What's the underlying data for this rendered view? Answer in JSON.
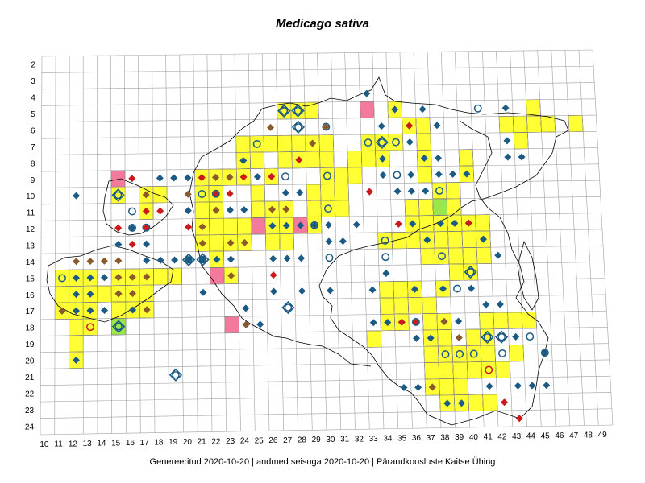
{
  "map": {
    "title": "Medicago sativa",
    "row_labels": [
      "2",
      "3",
      "4",
      "5",
      "6",
      "7",
      "8",
      "9",
      "10",
      "11",
      "12",
      "13",
      "14",
      "15",
      "16",
      "17",
      "18",
      "19",
      "20",
      "21",
      "22",
      "23",
      "24"
    ],
    "col_labels": [
      "10",
      "11",
      "12",
      "13",
      "14",
      "15",
      "16",
      "17",
      "18",
      "19",
      "20",
      "21",
      "22",
      "23",
      "24",
      "25",
      "26",
      "27",
      "28",
      "29",
      "30",
      "31",
      "32",
      "33",
      "34",
      "35",
      "36",
      "37",
      "38",
      "39",
      "40",
      "41",
      "42",
      "43",
      "44",
      "45",
      "46",
      "47",
      "48",
      "49"
    ],
    "colors": {
      "yellow_cell": "#ffff33",
      "pink_cell": "#f47a9d",
      "green_cell": "#99e64d",
      "grid": "#a0a0a0",
      "blue_marker": "#1a5a85",
      "red_marker": "#cc1a1a",
      "brown_marker": "#8a5a2b",
      "coast": "#000000"
    },
    "cells_yellow": [
      [
        27,
        5
      ],
      [
        28,
        5
      ],
      [
        29,
        5
      ],
      [
        35,
        5
      ],
      [
        45,
        5
      ],
      [
        36,
        6
      ],
      [
        37,
        6
      ],
      [
        43,
        6
      ],
      [
        44,
        6
      ],
      [
        45,
        6
      ],
      [
        46,
        6
      ],
      [
        48,
        6
      ],
      [
        24,
        7
      ],
      [
        25,
        7
      ],
      [
        26,
        7
      ],
      [
        27,
        7
      ],
      [
        28,
        7
      ],
      [
        29,
        7
      ],
      [
        30,
        7
      ],
      [
        33,
        7
      ],
      [
        34,
        7
      ],
      [
        35,
        7
      ],
      [
        37,
        7
      ],
      [
        44,
        7
      ],
      [
        24,
        8
      ],
      [
        25,
        8
      ],
      [
        27,
        8
      ],
      [
        28,
        8
      ],
      [
        29,
        8
      ],
      [
        30,
        8
      ],
      [
        32,
        8
      ],
      [
        33,
        8
      ],
      [
        34,
        8
      ],
      [
        37,
        8
      ],
      [
        40,
        8
      ],
      [
        21,
        9
      ],
      [
        22,
        9
      ],
      [
        23,
        9
      ],
      [
        24,
        9
      ],
      [
        26,
        9
      ],
      [
        30,
        9
      ],
      [
        31,
        9
      ],
      [
        32,
        9
      ],
      [
        37,
        9
      ],
      [
        40,
        9
      ],
      [
        15,
        10
      ],
      [
        17,
        10
      ],
      [
        18,
        10
      ],
      [
        21,
        10
      ],
      [
        22,
        10
      ],
      [
        25,
        10
      ],
      [
        29,
        10
      ],
      [
        30,
        10
      ],
      [
        31,
        10
      ],
      [
        38,
        10
      ],
      [
        39,
        10
      ],
      [
        17,
        11
      ],
      [
        21,
        11
      ],
      [
        22,
        11
      ],
      [
        25,
        11
      ],
      [
        26,
        11
      ],
      [
        27,
        11
      ],
      [
        29,
        11
      ],
      [
        30,
        11
      ],
      [
        31,
        11
      ],
      [
        36,
        11
      ],
      [
        37,
        11
      ],
      [
        38,
        11
      ],
      [
        39,
        11
      ],
      [
        21,
        12
      ],
      [
        22,
        12
      ],
      [
        23,
        12
      ],
      [
        24,
        12
      ],
      [
        25,
        12
      ],
      [
        26,
        12
      ],
      [
        27,
        12
      ],
      [
        28,
        12
      ],
      [
        29,
        12
      ],
      [
        36,
        12
      ],
      [
        37,
        12
      ],
      [
        38,
        12
      ],
      [
        39,
        12
      ],
      [
        40,
        12
      ],
      [
        41,
        12
      ],
      [
        21,
        13
      ],
      [
        22,
        13
      ],
      [
        23,
        13
      ],
      [
        24,
        13
      ],
      [
        26,
        13
      ],
      [
        27,
        13
      ],
      [
        34,
        13
      ],
      [
        35,
        13
      ],
      [
        36,
        13
      ],
      [
        37,
        13
      ],
      [
        38,
        13
      ],
      [
        39,
        13
      ],
      [
        40,
        13
      ],
      [
        41,
        13
      ],
      [
        11,
        15
      ],
      [
        12,
        15
      ],
      [
        13,
        15
      ],
      [
        15,
        15
      ],
      [
        16,
        15
      ],
      [
        17,
        15
      ],
      [
        18,
        15
      ],
      [
        19,
        15
      ],
      [
        22,
        14
      ],
      [
        40,
        14
      ],
      [
        41,
        14
      ],
      [
        38,
        14
      ],
      [
        39,
        14
      ],
      [
        37,
        14
      ],
      [
        11,
        16
      ],
      [
        12,
        16
      ],
      [
        13,
        16
      ],
      [
        14,
        16
      ],
      [
        15,
        16
      ],
      [
        16,
        16
      ],
      [
        17,
        16
      ],
      [
        22,
        15
      ],
      [
        23,
        15
      ],
      [
        39,
        15
      ],
      [
        40,
        15
      ],
      [
        11,
        17
      ],
      [
        12,
        17
      ],
      [
        13,
        17
      ],
      [
        15,
        17
      ],
      [
        16,
        17
      ],
      [
        17,
        17
      ],
      [
        35,
        16
      ],
      [
        36,
        16
      ],
      [
        34,
        16
      ],
      [
        38,
        16
      ],
      [
        12,
        18
      ],
      [
        13,
        18
      ],
      [
        15,
        18
      ],
      [
        35,
        17
      ],
      [
        36,
        17
      ],
      [
        34,
        17
      ],
      [
        37,
        17
      ],
      [
        12,
        19
      ],
      [
        34,
        18
      ],
      [
        35,
        18
      ],
      [
        37,
        18
      ],
      [
        38,
        18
      ],
      [
        41,
        18
      ],
      [
        42,
        18
      ],
      [
        43,
        18
      ],
      [
        44,
        18
      ],
      [
        12,
        20
      ],
      [
        33,
        19
      ],
      [
        37,
        19
      ],
      [
        38,
        19
      ],
      [
        40,
        19
      ],
      [
        41,
        19
      ],
      [
        37,
        20
      ],
      [
        38,
        20
      ],
      [
        39,
        20
      ],
      [
        40,
        20
      ],
      [
        41,
        20
      ],
      [
        43,
        20
      ],
      [
        37,
        21
      ],
      [
        38,
        21
      ],
      [
        39,
        21
      ],
      [
        40,
        21
      ],
      [
        41,
        21
      ],
      [
        42,
        21
      ],
      [
        37,
        22
      ],
      [
        38,
        22
      ],
      [
        39,
        22
      ],
      [
        38,
        23
      ],
      [
        39,
        23
      ],
      [
        40,
        23
      ],
      [
        41,
        23
      ]
    ],
    "cells_pink": [
      [
        33,
        5
      ],
      [
        15,
        9
      ],
      [
        25,
        12
      ],
      [
        28,
        12
      ],
      [
        22,
        15
      ],
      [
        23,
        18
      ]
    ],
    "cells_green": [
      [
        38,
        11
      ],
      [
        15,
        18
      ]
    ],
    "markers_blue_diamond": [
      [
        33,
        4
      ],
      [
        35,
        5
      ],
      [
        37,
        5
      ],
      [
        36,
        6
      ],
      [
        38,
        6
      ],
      [
        43,
        5
      ],
      [
        34,
        6
      ],
      [
        36,
        7
      ],
      [
        37,
        8
      ],
      [
        38,
        8
      ],
      [
        43,
        7
      ],
      [
        43,
        8
      ],
      [
        44,
        8
      ],
      [
        12,
        10
      ],
      [
        18,
        9
      ],
      [
        19,
        9
      ],
      [
        20,
        9
      ],
      [
        21,
        9
      ],
      [
        24,
        8
      ],
      [
        23,
        9
      ],
      [
        25,
        9
      ],
      [
        27,
        10
      ],
      [
        28,
        10
      ],
      [
        24,
        11
      ],
      [
        23,
        11
      ],
      [
        33,
        10
      ],
      [
        34,
        9
      ],
      [
        34,
        8
      ],
      [
        36,
        9
      ],
      [
        37,
        10
      ],
      [
        38,
        9
      ],
      [
        39,
        9
      ],
      [
        40,
        9
      ],
      [
        35,
        10
      ],
      [
        36,
        10
      ],
      [
        20,
        11
      ],
      [
        22,
        11
      ],
      [
        26,
        12
      ],
      [
        27,
        12
      ],
      [
        28,
        12
      ],
      [
        29,
        12
      ],
      [
        30,
        12
      ],
      [
        32,
        12
      ],
      [
        30,
        13
      ],
      [
        31,
        13
      ],
      [
        15,
        12
      ],
      [
        16,
        12
      ],
      [
        15,
        13
      ],
      [
        17,
        13
      ],
      [
        17,
        14
      ],
      [
        18,
        14
      ],
      [
        19,
        14
      ],
      [
        20,
        14
      ],
      [
        21,
        14
      ],
      [
        22,
        14
      ],
      [
        23,
        14
      ],
      [
        26,
        14
      ],
      [
        27,
        14
      ],
      [
        28,
        14
      ],
      [
        35,
        12
      ],
      [
        36,
        12
      ],
      [
        37,
        13
      ],
      [
        38,
        12
      ],
      [
        39,
        12
      ],
      [
        40,
        12
      ],
      [
        41,
        13
      ],
      [
        42,
        14
      ],
      [
        12,
        15
      ],
      [
        13,
        15
      ],
      [
        14,
        15
      ],
      [
        12,
        16
      ],
      [
        13,
        16
      ],
      [
        15,
        16
      ],
      [
        12,
        17
      ],
      [
        13,
        17
      ],
      [
        14,
        17
      ],
      [
        16,
        17
      ],
      [
        21,
        16
      ],
      [
        24,
        17
      ],
      [
        26,
        16
      ],
      [
        28,
        16
      ],
      [
        30,
        16
      ],
      [
        33,
        16
      ],
      [
        34,
        15
      ],
      [
        36,
        16
      ],
      [
        38,
        16
      ],
      [
        40,
        16
      ],
      [
        41,
        17
      ],
      [
        42,
        17
      ],
      [
        24,
        18
      ],
      [
        25,
        18
      ],
      [
        33,
        18
      ],
      [
        34,
        18
      ],
      [
        35,
        18
      ],
      [
        36,
        19
      ],
      [
        37,
        19
      ],
      [
        38,
        18
      ],
      [
        39,
        18
      ],
      [
        43,
        19
      ],
      [
        45,
        20
      ],
      [
        35,
        22
      ],
      [
        36,
        22
      ],
      [
        37,
        22
      ],
      [
        38,
        23
      ],
      [
        39,
        23
      ],
      [
        41,
        22
      ],
      [
        43,
        22
      ],
      [
        44,
        22
      ],
      [
        45,
        22
      ],
      [
        12,
        20
      ]
    ],
    "markers_red_diamond": [
      [
        36,
        6
      ],
      [
        28,
        8
      ],
      [
        16,
        9
      ],
      [
        21,
        9
      ],
      [
        23,
        10
      ],
      [
        24,
        9
      ],
      [
        26,
        9
      ],
      [
        17,
        11
      ],
      [
        18,
        11
      ],
      [
        22,
        10
      ],
      [
        33,
        10
      ],
      [
        15,
        12
      ],
      [
        17,
        12
      ],
      [
        35,
        12
      ],
      [
        40,
        12
      ],
      [
        20,
        12
      ],
      [
        16,
        13
      ],
      [
        26,
        15
      ],
      [
        35,
        18
      ],
      [
        42,
        23
      ],
      [
        43,
        24
      ],
      [
        36,
        18
      ]
    ],
    "markers_brown_diamond": [
      [
        26,
        6
      ],
      [
        30,
        6
      ],
      [
        29,
        7
      ],
      [
        23,
        9
      ],
      [
        22,
        9
      ],
      [
        17,
        10
      ],
      [
        20,
        10
      ],
      [
        26,
        11
      ],
      [
        27,
        11
      ],
      [
        21,
        12
      ],
      [
        22,
        11
      ],
      [
        21,
        13
      ],
      [
        23,
        13
      ],
      [
        24,
        13
      ],
      [
        14,
        14
      ],
      [
        15,
        14
      ],
      [
        16,
        15
      ],
      [
        17,
        15
      ],
      [
        15,
        16
      ],
      [
        16,
        16
      ],
      [
        17,
        17
      ],
      [
        11,
        17
      ],
      [
        12,
        14
      ],
      [
        15,
        15
      ],
      [
        23,
        15
      ],
      [
        24,
        18
      ],
      [
        38,
        18
      ],
      [
        39,
        19
      ],
      [
        37,
        22
      ],
      [
        22,
        9
      ],
      [
        13,
        14
      ]
    ],
    "markers_blue_circle": [
      [
        41,
        5
      ],
      [
        33,
        7
      ],
      [
        35,
        7
      ],
      [
        30,
        6
      ],
      [
        25,
        7
      ],
      [
        27,
        9
      ],
      [
        30,
        9
      ],
      [
        35,
        9
      ],
      [
        38,
        10
      ],
      [
        16,
        11
      ],
      [
        16,
        12
      ],
      [
        17,
        12
      ],
      [
        21,
        10
      ],
      [
        22,
        10
      ],
      [
        30,
        11
      ],
      [
        29,
        12
      ],
      [
        30,
        14
      ],
      [
        34,
        14
      ],
      [
        34,
        13
      ],
      [
        38,
        14
      ],
      [
        40,
        15
      ],
      [
        38,
        20
      ],
      [
        39,
        20
      ],
      [
        40,
        20
      ],
      [
        42,
        20
      ],
      [
        44,
        19
      ],
      [
        45,
        20
      ],
      [
        11,
        15
      ],
      [
        39,
        16
      ],
      [
        36,
        18
      ]
    ],
    "markers_red_circle": [
      [
        13,
        18
      ],
      [
        41,
        21
      ]
    ],
    "markers_big_target": [
      [
        15,
        10
      ],
      [
        27,
        5
      ],
      [
        28,
        6
      ],
      [
        34,
        7
      ],
      [
        21,
        14
      ],
      [
        20,
        14
      ],
      [
        15,
        18
      ],
      [
        40,
        15
      ],
      [
        41,
        19
      ],
      [
        42,
        19
      ],
      [
        19,
        21
      ],
      [
        27,
        17
      ],
      [
        27,
        5
      ],
      [
        28,
        5
      ]
    ]
  },
  "footer": {
    "text": "Genereeritud 2020-10-20  |  andmed seisuga 2020-10-20  |  Pärandkoosluste Kaitse Ühing"
  }
}
